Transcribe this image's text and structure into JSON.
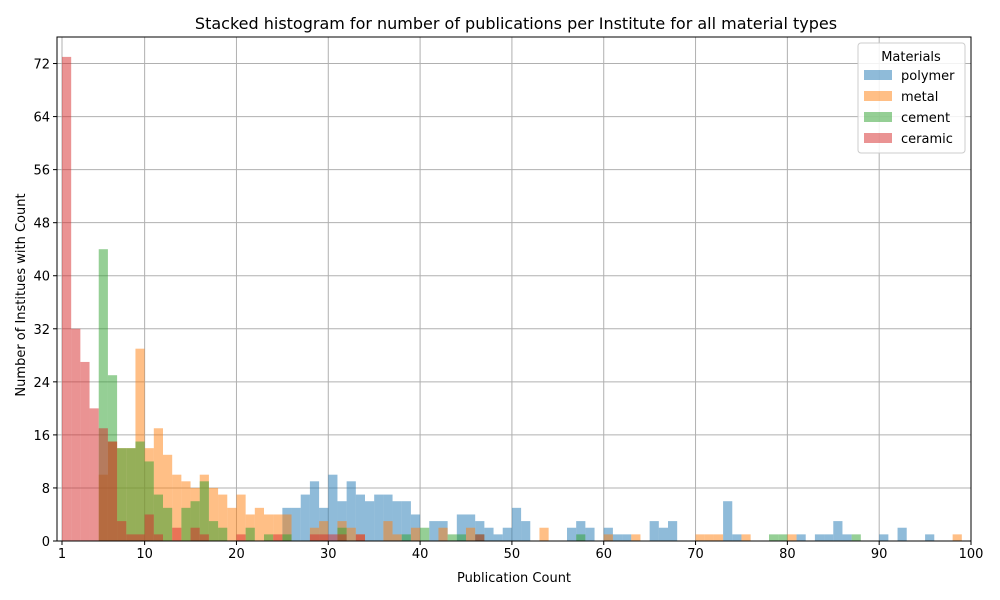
{
  "chart_data": {
    "type": "bar",
    "title": "Stacked histogram for number of publications per Institute for all material types",
    "xlabel": "Publication Count",
    "ylabel": "Number of Institues with Count",
    "xlim": [
      1,
      100
    ],
    "ylim": [
      0,
      76
    ],
    "xticks": [
      1,
      10,
      20,
      30,
      40,
      50,
      60,
      70,
      80,
      90,
      100
    ],
    "yticks": [
      0,
      8,
      16,
      24,
      32,
      40,
      48,
      56,
      64,
      72
    ],
    "grid": true,
    "bin_width": 1,
    "alpha": 0.5,
    "legend": {
      "title": "Materials",
      "position": "top-right"
    },
    "series": [
      {
        "name": "polymer",
        "color": "#1f77b4",
        "bins": [
          [
            25,
            5
          ],
          [
            26,
            5
          ],
          [
            27,
            7
          ],
          [
            28,
            9
          ],
          [
            29,
            5
          ],
          [
            30,
            10
          ],
          [
            31,
            6
          ],
          [
            32,
            9
          ],
          [
            33,
            7
          ],
          [
            34,
            6
          ],
          [
            35,
            7
          ],
          [
            36,
            7
          ],
          [
            37,
            6
          ],
          [
            38,
            6
          ],
          [
            39,
            4
          ],
          [
            41,
            3
          ],
          [
            42,
            3
          ],
          [
            44,
            4
          ],
          [
            45,
            4
          ],
          [
            46,
            3
          ],
          [
            47,
            2
          ],
          [
            48,
            1
          ],
          [
            49,
            2
          ],
          [
            50,
            5
          ],
          [
            51,
            3
          ],
          [
            56,
            2
          ],
          [
            57,
            3
          ],
          [
            58,
            2
          ],
          [
            60,
            2
          ],
          [
            61,
            1
          ],
          [
            62,
            1
          ],
          [
            65,
            3
          ],
          [
            66,
            2
          ],
          [
            67,
            3
          ],
          [
            73,
            6
          ],
          [
            74,
            1
          ],
          [
            81,
            1
          ],
          [
            83,
            1
          ],
          [
            84,
            1
          ],
          [
            85,
            3
          ],
          [
            86,
            1
          ],
          [
            90,
            1
          ],
          [
            92,
            2
          ],
          [
            95,
            1
          ]
        ]
      },
      {
        "name": "metal",
        "color": "#ff7f0e",
        "bins": [
          [
            5,
            10
          ],
          [
            6,
            15
          ],
          [
            7,
            14
          ],
          [
            8,
            14
          ],
          [
            9,
            29
          ],
          [
            10,
            14
          ],
          [
            11,
            17
          ],
          [
            12,
            13
          ],
          [
            13,
            10
          ],
          [
            14,
            9
          ],
          [
            15,
            8
          ],
          [
            16,
            10
          ],
          [
            17,
            8
          ],
          [
            18,
            7
          ],
          [
            19,
            5
          ],
          [
            20,
            7
          ],
          [
            21,
            4
          ],
          [
            22,
            5
          ],
          [
            23,
            4
          ],
          [
            24,
            4
          ],
          [
            25,
            4
          ],
          [
            28,
            2
          ],
          [
            29,
            3
          ],
          [
            31,
            3
          ],
          [
            32,
            2
          ],
          [
            33,
            1
          ],
          [
            36,
            3
          ],
          [
            37,
            1
          ],
          [
            39,
            2
          ],
          [
            42,
            2
          ],
          [
            45,
            2
          ],
          [
            53,
            2
          ],
          [
            60,
            1
          ],
          [
            63,
            1
          ],
          [
            70,
            1
          ],
          [
            71,
            1
          ],
          [
            72,
            1
          ],
          [
            75,
            1
          ],
          [
            80,
            1
          ],
          [
            98,
            1
          ]
        ]
      },
      {
        "name": "cement",
        "color": "#2ca02c",
        "bins": [
          [
            5,
            44
          ],
          [
            6,
            25
          ],
          [
            7,
            14
          ],
          [
            8,
            14
          ],
          [
            9,
            15
          ],
          [
            10,
            12
          ],
          [
            11,
            7
          ],
          [
            12,
            5
          ],
          [
            14,
            5
          ],
          [
            15,
            6
          ],
          [
            16,
            9
          ],
          [
            17,
            3
          ],
          [
            18,
            2
          ],
          [
            21,
            2
          ],
          [
            23,
            1
          ],
          [
            25,
            1
          ],
          [
            31,
            2
          ],
          [
            38,
            1
          ],
          [
            40,
            2
          ],
          [
            43,
            1
          ],
          [
            44,
            1
          ],
          [
            46,
            1
          ],
          [
            57,
            1
          ],
          [
            78,
            1
          ],
          [
            79,
            1
          ],
          [
            87,
            1
          ]
        ]
      },
      {
        "name": "ceramic",
        "color": "#d62728",
        "bins": [
          [
            1,
            73
          ],
          [
            2,
            32
          ],
          [
            3,
            27
          ],
          [
            4,
            20
          ],
          [
            5,
            17
          ],
          [
            6,
            15
          ],
          [
            7,
            3
          ],
          [
            8,
            1
          ],
          [
            9,
            1
          ],
          [
            10,
            4
          ],
          [
            11,
            1
          ],
          [
            13,
            2
          ],
          [
            15,
            2
          ],
          [
            16,
            1
          ],
          [
            20,
            1
          ],
          [
            24,
            1
          ],
          [
            28,
            1
          ],
          [
            29,
            1
          ],
          [
            30,
            1
          ],
          [
            31,
            1
          ],
          [
            33,
            1
          ],
          [
            46,
            1
          ]
        ]
      }
    ]
  }
}
